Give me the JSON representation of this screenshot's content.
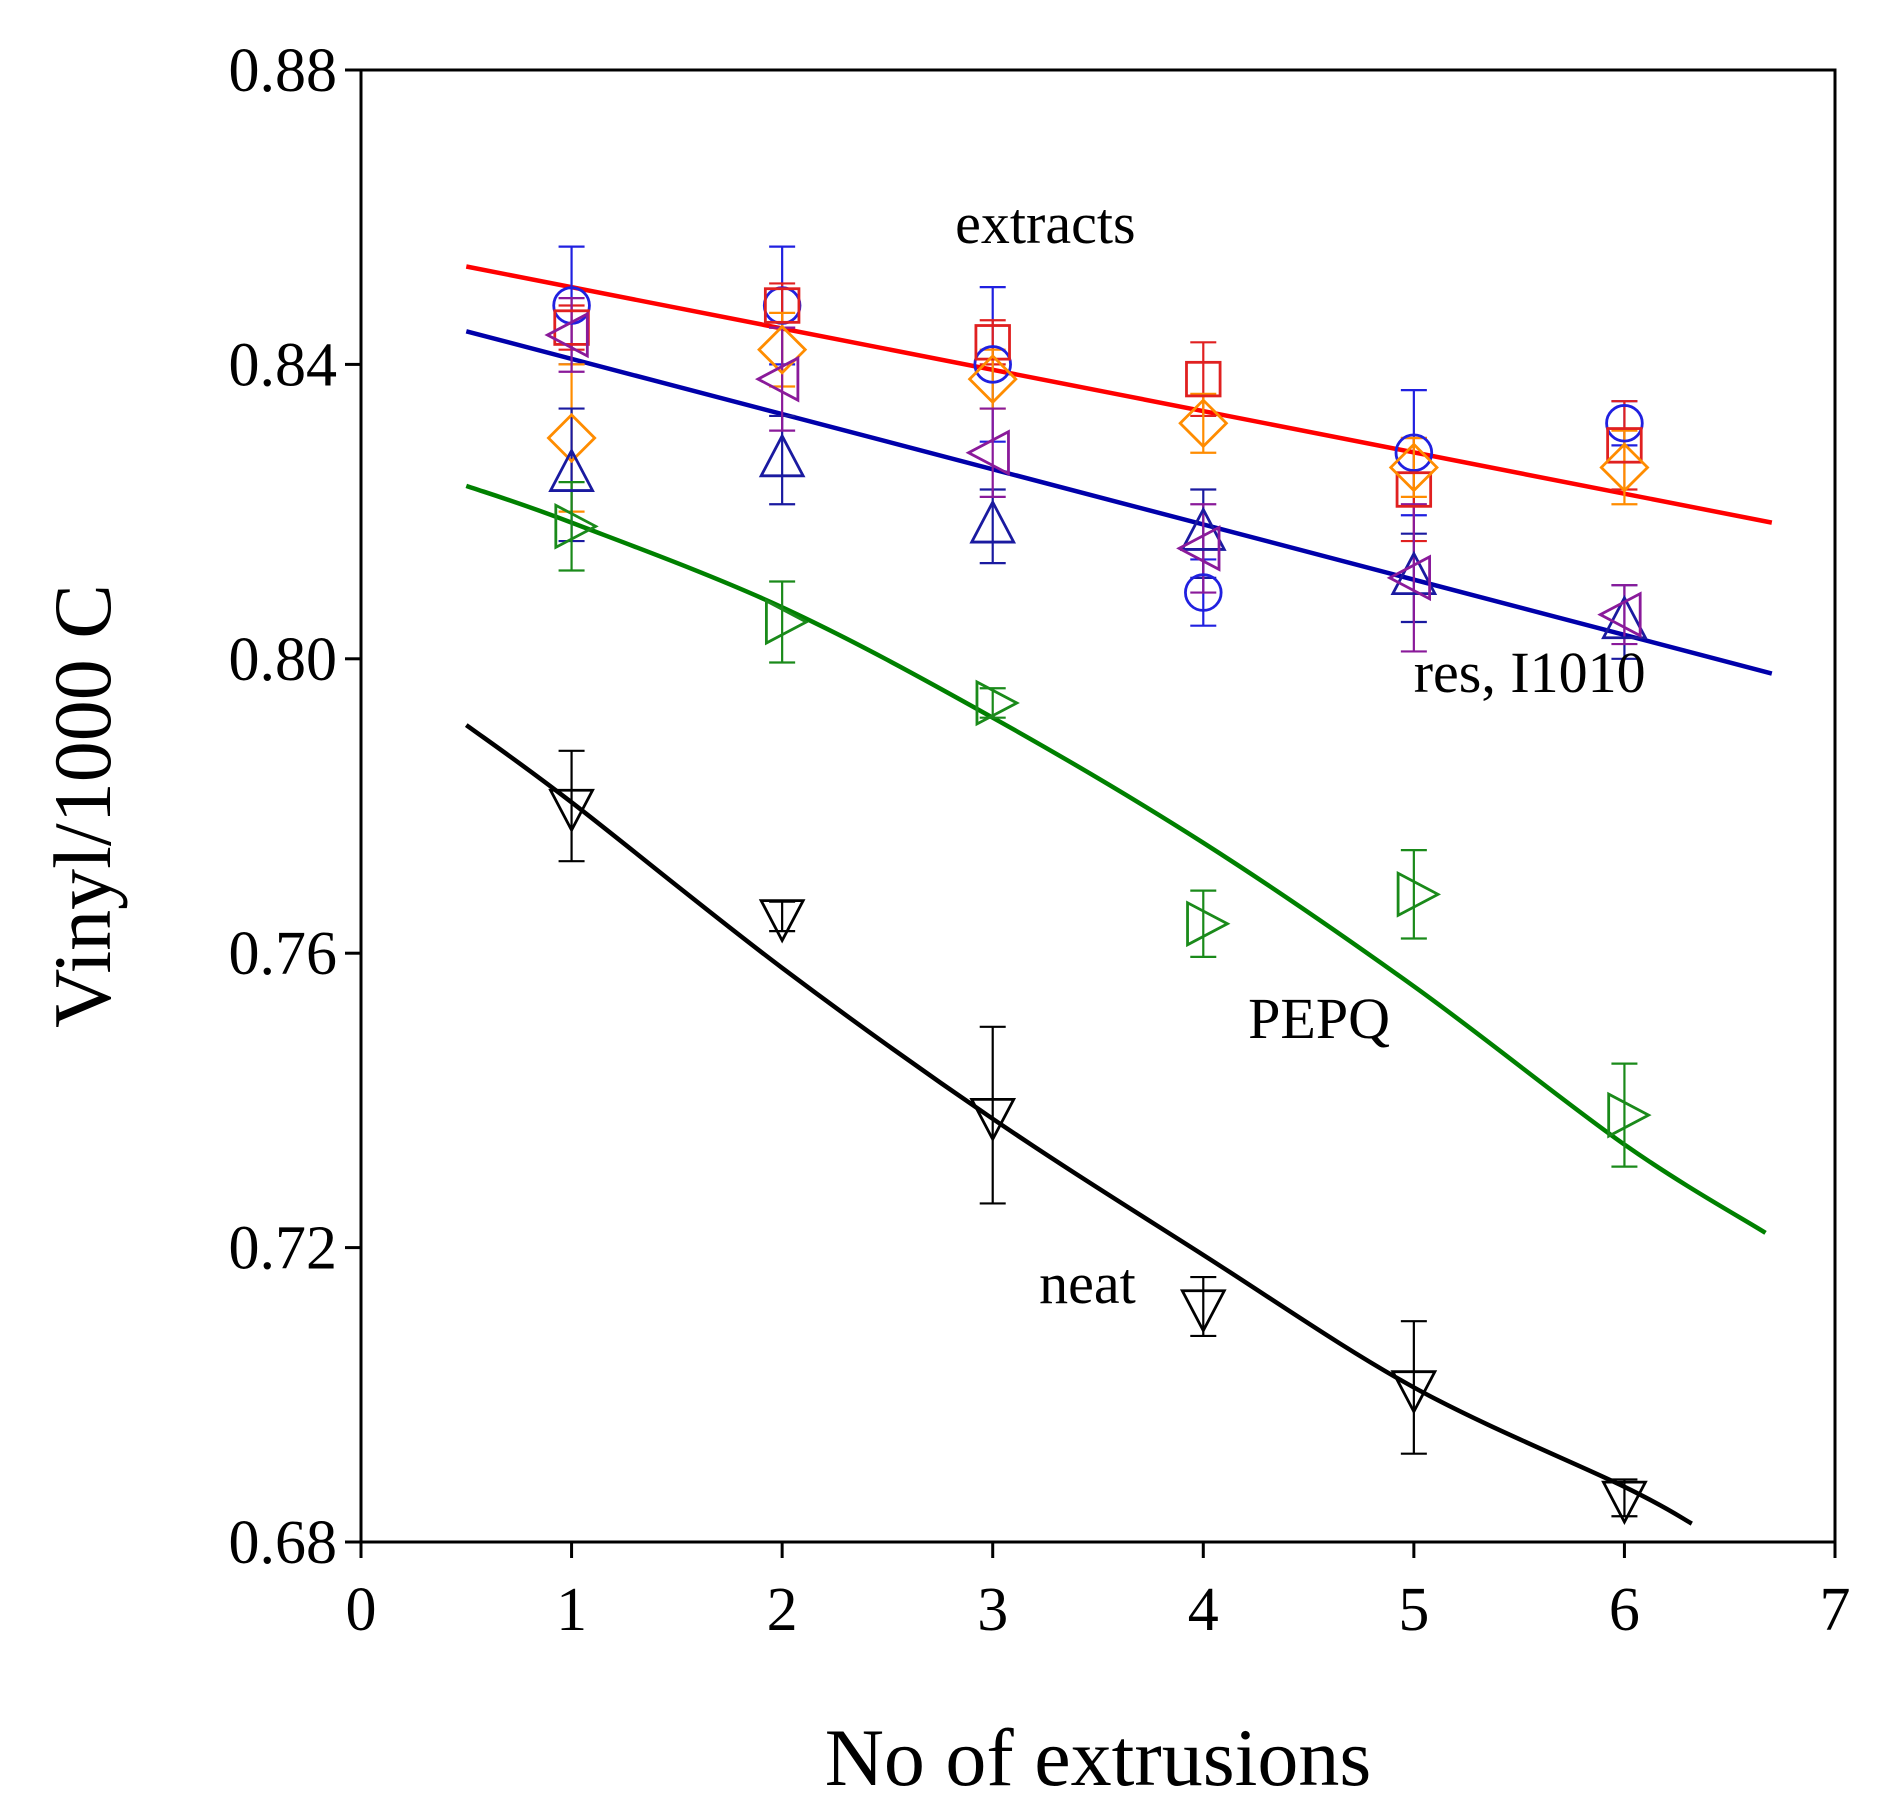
{
  "chart_data": {
    "type": "scatter",
    "title": "",
    "xlabel": "No of extrusions",
    "ylabel": "Vinyl/1000 C",
    "xlim": [
      0,
      7
    ],
    "ylim": [
      0.68,
      0.88
    ],
    "xticks": [
      "0",
      "1",
      "2",
      "3",
      "4",
      "5",
      "6",
      "7"
    ],
    "yticks": [
      "0.68",
      "0.72",
      "0.76",
      "0.80",
      "0.84",
      "0.88"
    ],
    "grid": false,
    "legend": "none",
    "annotations": [
      {
        "text": "extracts",
        "x": 3.25,
        "y": 0.8565
      },
      {
        "text": "res, I1010",
        "x": 5.55,
        "y": 0.7955
      },
      {
        "text": "PEPQ",
        "x": 4.55,
        "y": 0.7485
      },
      {
        "text": "neat",
        "x": 3.45,
        "y": 0.7125
      }
    ],
    "series": [
      {
        "marker": "circle",
        "color": "#2020e0",
        "points": [
          {
            "x": 1,
            "y": 0.848,
            "err": 0.008
          },
          {
            "x": 2,
            "y": 0.848,
            "err": 0.008
          },
          {
            "x": 3,
            "y": 0.84,
            "err": 0.0105
          },
          {
            "x": 4,
            "y": 0.809,
            "err": 0.0045
          },
          {
            "x": 5,
            "y": 0.828,
            "err": 0.0085
          },
          {
            "x": 6,
            "y": 0.832,
            "err": 0.003
          }
        ]
      },
      {
        "marker": "square",
        "color": "#e02020",
        "points": [
          {
            "x": 1,
            "y": 0.845,
            "err": 0.003
          },
          {
            "x": 2,
            "y": 0.848,
            "err": 0.003
          },
          {
            "x": 3,
            "y": 0.843,
            "err": 0.003
          },
          {
            "x": 4,
            "y": 0.838,
            "err": 0.005
          },
          {
            "x": 5,
            "y": 0.823,
            "err": 0.007
          },
          {
            "x": 6,
            "y": 0.829,
            "err": 0.006
          }
        ]
      },
      {
        "marker": "diamond",
        "color": "#ff8c00",
        "points": [
          {
            "x": 1,
            "y": 0.83,
            "err": 0.01
          },
          {
            "x": 2,
            "y": 0.842,
            "err": 0.005
          },
          {
            "x": 3,
            "y": 0.838,
            "err": 0.004
          },
          {
            "x": 4,
            "y": 0.832,
            "err": 0.004
          },
          {
            "x": 5,
            "y": 0.826,
            "err": 0.004
          },
          {
            "x": 6,
            "y": 0.826,
            "err": 0.005
          }
        ]
      },
      {
        "marker": "triangle-up",
        "color": "#1a1aa0",
        "points": [
          {
            "x": 1,
            "y": 0.825,
            "err": 0.009
          },
          {
            "x": 2,
            "y": 0.827,
            "err": 0.006
          },
          {
            "x": 3,
            "y": 0.818,
            "err": 0.005
          },
          {
            "x": 4,
            "y": 0.817,
            "err": 0.006
          },
          {
            "x": 5,
            "y": 0.811,
            "err": 0.006
          },
          {
            "x": 6,
            "y": 0.805,
            "err": 0.005
          }
        ]
      },
      {
        "marker": "triangle-left",
        "color": "#8a1a9a",
        "points": [
          {
            "x": 1,
            "y": 0.844,
            "err": 0.005
          },
          {
            "x": 2,
            "y": 0.838,
            "err": 0.007
          },
          {
            "x": 3,
            "y": 0.828,
            "err": 0.006
          },
          {
            "x": 4,
            "y": 0.815,
            "err": 0.006
          },
          {
            "x": 5,
            "y": 0.811,
            "err": 0.01
          },
          {
            "x": 6,
            "y": 0.806,
            "err": 0.004
          }
        ]
      },
      {
        "marker": "triangle-right",
        "color": "#1a8a1a",
        "points": [
          {
            "x": 1,
            "y": 0.818,
            "err": 0.006
          },
          {
            "x": 2,
            "y": 0.805,
            "err": 0.0055
          },
          {
            "x": 3,
            "y": 0.794,
            "err": 0.002
          },
          {
            "x": 4,
            "y": 0.764,
            "err": 0.0045
          },
          {
            "x": 5,
            "y": 0.768,
            "err": 0.006
          },
          {
            "x": 6,
            "y": 0.738,
            "err": 0.007
          }
        ]
      },
      {
        "marker": "triangle-down",
        "color": "#000000",
        "points": [
          {
            "x": 1,
            "y": 0.78,
            "err": 0.0075
          },
          {
            "x": 2,
            "y": 0.765,
            "err": 0.002
          },
          {
            "x": 3,
            "y": 0.738,
            "err": 0.012
          },
          {
            "x": 4,
            "y": 0.712,
            "err": 0.004
          },
          {
            "x": 5,
            "y": 0.701,
            "err": 0.009
          },
          {
            "x": 6,
            "y": 0.686,
            "err": 0.0025
          }
        ]
      }
    ],
    "fits": [
      {
        "color": "#ff0000",
        "points": [
          [
            0.5,
            0.8533
          ],
          [
            6.7,
            0.8185
          ]
        ]
      },
      {
        "color": "#0000aa",
        "points": [
          [
            0.5,
            0.8445
          ],
          [
            6.7,
            0.798
          ]
        ]
      },
      {
        "color": "#008000",
        "points": [
          [
            0.5,
            0.8235
          ],
          [
            1.0,
            0.8185
          ],
          [
            2.0,
            0.807
          ],
          [
            3.0,
            0.792
          ],
          [
            4.0,
            0.775
          ],
          [
            5.0,
            0.7555
          ],
          [
            6.0,
            0.734
          ],
          [
            6.67,
            0.722
          ]
        ]
      },
      {
        "color": "#000000",
        "points": [
          [
            0.5,
            0.791
          ],
          [
            1.0,
            0.7805
          ],
          [
            2.0,
            0.758
          ],
          [
            3.0,
            0.7375
          ],
          [
            4.0,
            0.719
          ],
          [
            5.0,
            0.701
          ],
          [
            6.0,
            0.6875
          ],
          [
            6.32,
            0.6825
          ]
        ]
      }
    ]
  }
}
